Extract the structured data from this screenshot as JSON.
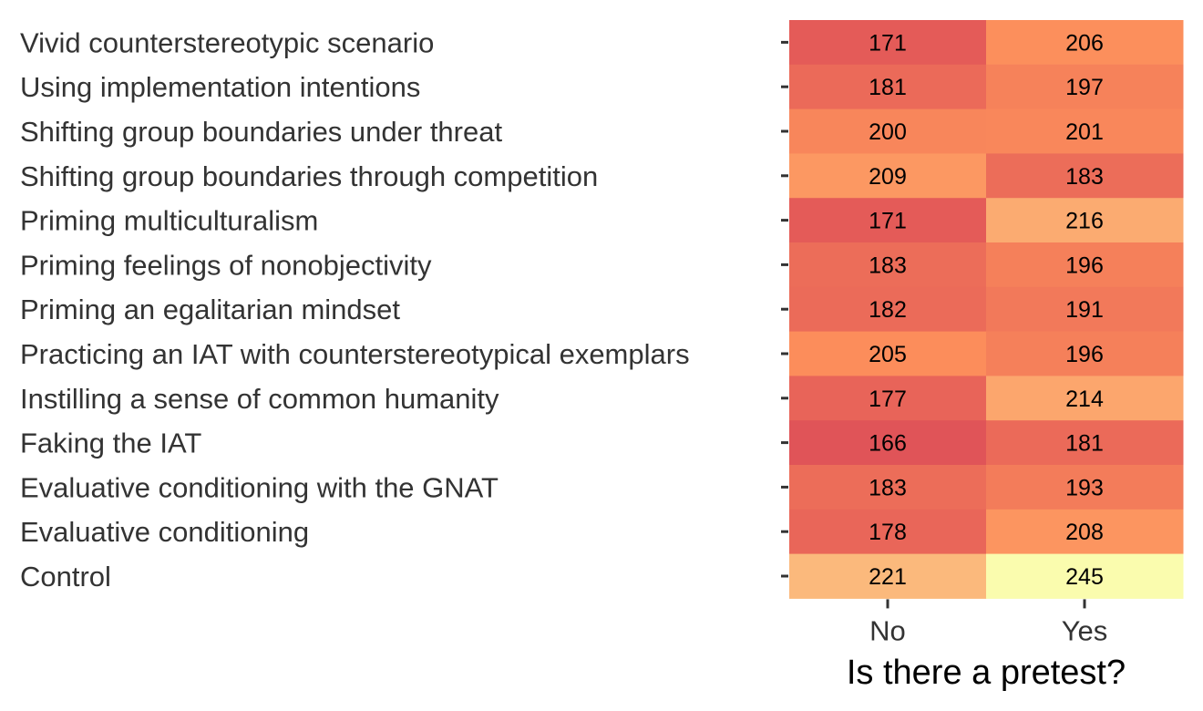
{
  "chart_data": {
    "type": "heatmap",
    "title": "",
    "xlabel": "Is there a pretest?",
    "ylabel": "",
    "x": [
      "No",
      "Yes"
    ],
    "y": [
      "Vivid counterstereotypic scenario",
      "Using implementation intentions",
      "Shifting group boundaries under threat",
      "Shifting group boundaries through competition",
      "Priming multiculturalism",
      "Priming feelings of nonobjectivity",
      "Priming an egalitarian mindset",
      "Practicing an IAT with counterstereotypical exemplars",
      "Instilling a sense of common humanity",
      "Faking the IAT",
      "Evaluative conditioning with the GNAT",
      "Evaluative conditioning",
      "Control"
    ],
    "values": [
      [
        171,
        206
      ],
      [
        181,
        197
      ],
      [
        200,
        201
      ],
      [
        209,
        183
      ],
      [
        171,
        216
      ],
      [
        183,
        196
      ],
      [
        182,
        191
      ],
      [
        205,
        196
      ],
      [
        177,
        214
      ],
      [
        166,
        181
      ],
      [
        183,
        193
      ],
      [
        178,
        208
      ],
      [
        221,
        245
      ]
    ],
    "color_scale": {
      "low": "#e05458",
      "mid": "#fc8e5b",
      "high": "#fafcae"
    },
    "grid": false,
    "legend": "none"
  }
}
